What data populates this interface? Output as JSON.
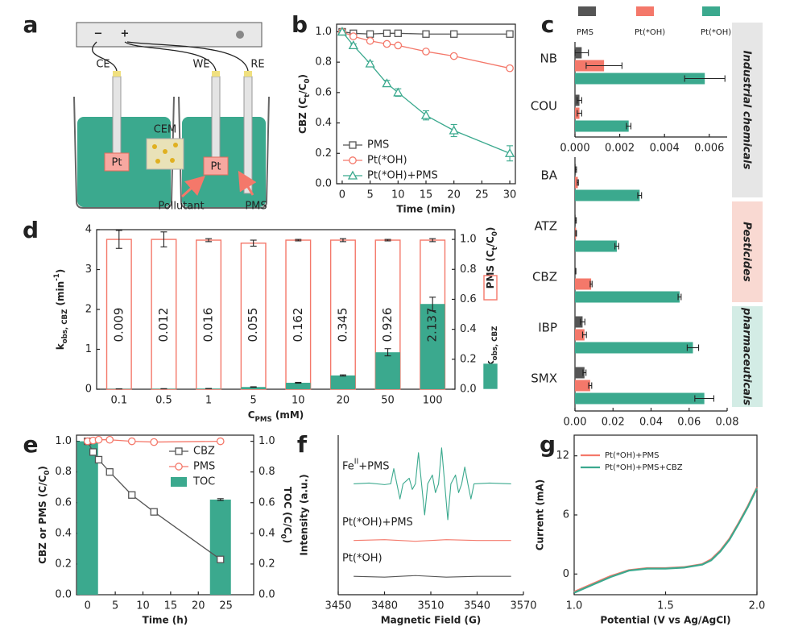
{
  "diagram": {
    "panel_label": "a",
    "power_minus": "−",
    "power_plus": "+",
    "electrodes": {
      "counter": "CE",
      "working": "WE",
      "reference": "RE"
    },
    "membrane": "CEM",
    "electrode_material": [
      "Pt",
      "Pt"
    ],
    "annotations": [
      "Pollutant",
      "PMS"
    ]
  },
  "chart_data": [
    {
      "type": "line",
      "panel_label": "b",
      "x": [
        0,
        2,
        5,
        8,
        10,
        15,
        20,
        30
      ],
      "xlim": [
        -1,
        31
      ],
      "xticks": [
        0,
        5,
        10,
        15,
        20,
        25,
        30
      ],
      "ylim": [
        0,
        1.05
      ],
      "yticks": [
        {
          "value": 0,
          "label": "0.0"
        },
        0.2,
        0.4,
        0.6,
        0.8,
        {
          "value": 1,
          "label": "1.0"
        }
      ],
      "xlabel": "Time (min)",
      "ylabel": [
        {
          "text": "CBZ (C"
        },
        {
          "text": "t",
          "shift": "sub"
        },
        {
          "text": "/C"
        },
        {
          "text": "0",
          "shift": "sub"
        },
        {
          "text": ")"
        }
      ],
      "legend": "lower-left",
      "series": [
        {
          "name": "PMS",
          "color": "#555555",
          "marker": "square",
          "values": [
            1,
            0.99,
            0.985,
            0.99,
            0.99,
            0.985,
            0.985,
            0.985
          ]
        },
        {
          "name": "Pt(*OH)",
          "color": "#f4786a",
          "marker": "circle",
          "values": [
            1,
            0.97,
            0.94,
            0.92,
            0.91,
            0.87,
            0.84,
            0.76
          ]
        },
        {
          "name": "Pt(*OH)+PMS",
          "color": "#3ba98e",
          "marker": "triangle",
          "values": [
            1,
            0.91,
            0.79,
            0.66,
            0.6,
            0.45,
            0.35,
            0.2
          ],
          "errors": [
            0.01,
            0.01,
            0.015,
            0.02,
            0.025,
            0.03,
            0.04,
            0.05
          ]
        }
      ]
    },
    {
      "type": "barh",
      "panel_label": "c",
      "categories": [
        "NB",
        "COU",
        "BA",
        "ATZ",
        "CBZ",
        "IBP",
        "SMX"
      ],
      "category_axis": [
        "x",
        "x",
        "x2",
        "x2",
        "x2",
        "x2",
        "x2"
      ],
      "xlim": [
        0,
        0.0068
      ],
      "xticks": [
        {
          "value": 0,
          "label": "0.000"
        },
        0.002,
        0.004,
        0.006
      ],
      "x2lim": [
        0,
        0.08
      ],
      "x2ticks": [
        {
          "value": 0,
          "label": "0.00"
        },
        0.02,
        0.04,
        0.06,
        0.08
      ],
      "legend": "top",
      "series": [
        {
          "name": "PMS",
          "color": "#555555",
          "values": [
            0.0003,
            0.0002,
            0.0005,
            0.0004,
            0.0003,
            0.004,
            0.005
          ],
          "errors": [
            0.0003,
            0.0001,
            0.0003,
            0.0003,
            0.0002,
            0.0012,
            0.0008
          ]
        },
        {
          "name": "Pt(*OH)",
          "color": "#f4786a",
          "values": [
            0.0013,
            0.0002,
            0.0015,
            0.0006,
            0.0085,
            0.005,
            0.008
          ],
          "errors": [
            0.0008,
            0.0001,
            0.0003,
            0.0002,
            0.0005,
            0.001,
            0.0008
          ]
        },
        {
          "name": "Pt(*OH)+PMS",
          "color": "#3ba98e",
          "values": [
            0.0058,
            0.0024,
            0.034,
            0.022,
            0.055,
            0.062,
            0.068
          ],
          "errors": [
            0.0009,
            0.0001,
            0.001,
            0.001,
            0.0008,
            0.003,
            0.005
          ]
        }
      ],
      "groups": [
        {
          "label": "Industrial chemicals",
          "color": "#e6e6e6"
        },
        {
          "label": "Pesticides",
          "color": "#f9d9d2"
        },
        {
          "label": "pharmaceuticals",
          "color": "#d3ece5"
        }
      ]
    },
    {
      "type": "bar",
      "panel_label": "d",
      "categories": [
        "0.1",
        "0.5",
        "1",
        "5",
        "10",
        "20",
        "50",
        "100"
      ],
      "ylim": [
        0,
        4
      ],
      "yticks": [
        0,
        1,
        2,
        3,
        4
      ],
      "y2lim": [
        0,
        1.065
      ],
      "y2ticks": [
        {
          "value": 0,
          "label": "0.0"
        },
        0.2,
        0.4,
        0.6,
        0.8,
        {
          "value": 1,
          "label": "1.0"
        }
      ],
      "xlabel": [
        {
          "text": "C"
        },
        {
          "text": "PMS",
          "shift": "sub"
        },
        {
          "text": " (mM)"
        }
      ],
      "ylabel": [
        {
          "text": "k"
        },
        {
          "text": "obs, CBZ",
          "shift": "sub"
        },
        {
          "text": " (min"
        },
        {
          "text": "-1",
          "shift": "super"
        },
        {
          "text": ")"
        }
      ],
      "legend": "right",
      "series": [
        {
          "name": [
            {
              "text": "PMS (C"
            },
            {
              "text": "t",
              "shift": "sub"
            },
            {
              "text": "/C"
            },
            {
              "text": "0",
              "shift": "sub"
            },
            {
              "text": ")"
            }
          ],
          "color": "#f4786a",
          "style": "outline",
          "axis": "y2",
          "values": [
            1,
            1,
            0.995,
            0.975,
            0.995,
            0.995,
            0.995,
            0.995
          ],
          "errors": [
            0.06,
            0.05,
            0.01,
            0.02,
            0.005,
            0.01,
            0.005,
            0.01
          ]
        },
        {
          "name": [
            {
              "text": "k"
            },
            {
              "text": "obs, CBZ",
              "shift": "sub"
            }
          ],
          "color": "#3ba98e",
          "style": "fill",
          "values": [
            0.009,
            0.012,
            0.016,
            0.055,
            0.162,
            0.345,
            0.926,
            2.137
          ],
          "errors": [
            0.002,
            0.002,
            0.003,
            0.006,
            0.01,
            0.015,
            0.09,
            0.17
          ],
          "show_values": true
        }
      ]
    },
    {
      "type": "line",
      "panel_label": "e",
      "x": [
        0,
        1,
        2,
        4,
        8,
        12,
        24
      ],
      "xlim": [
        -2,
        30
      ],
      "xticks": [
        0,
        5,
        10,
        15,
        20,
        25
      ],
      "ylim": [
        0,
        1.04
      ],
      "yticks": [
        {
          "value": 0,
          "label": "0.0"
        },
        0.2,
        0.4,
        0.6,
        0.8,
        {
          "value": 1,
          "label": "1.0"
        }
      ],
      "y2lim": [
        0,
        1.04
      ],
      "y2ticks": [
        {
          "value": 0,
          "label": "0.0"
        },
        0.2,
        0.4,
        0.6,
        0.8,
        {
          "value": 1,
          "label": "1.0"
        }
      ],
      "xlabel": "Time (h)",
      "ylabel": [
        {
          "text": "CBZ or PMS (C/C"
        },
        {
          "text": "0",
          "shift": "sub"
        },
        {
          "text": ")"
        }
      ],
      "y2label": [
        {
          "text": "TOC (C/C"
        },
        {
          "text": "0",
          "shift": "sub"
        },
        {
          "text": ")"
        }
      ],
      "legend": "upper-right",
      "series": [
        {
          "name": "CBZ",
          "color": "#555555",
          "marker": "square",
          "values": [
            1,
            0.93,
            0.88,
            0.8,
            0.65,
            0.54,
            0.23
          ],
          "errors": [
            0.01,
            0.01,
            0.015,
            0.01,
            0.015,
            0.015,
            0.01
          ]
        },
        {
          "name": "PMS",
          "color": "#f4786a",
          "marker": "circle",
          "values": [
            1,
            1.005,
            1.01,
            1.01,
            1,
            0.995,
            1
          ]
        },
        {
          "name": "TOC",
          "color": "#3ba98e",
          "kind": "bar",
          "axis": "y2",
          "x": [
            0,
            24
          ],
          "values": [
            1,
            0.62
          ],
          "errors": [
            0.004,
            0.006
          ]
        }
      ]
    },
    {
      "type": "line",
      "panel_label": "f",
      "xlim": [
        3450,
        3570
      ],
      "xticks": [
        3450,
        3480,
        3510,
        3540,
        3570
      ],
      "ylim": [
        0,
        10
      ],
      "xlabel": "Magnetic Field (G)",
      "ylabel": "Intensity (a.u.)",
      "legend": "inline",
      "series": [
        {
          "name": [
            {
              "text": "Fe"
            },
            {
              "text": "II",
              "shift": "super"
            },
            {
              "text": "+PMS"
            }
          ],
          "color": "#3ba98e",
          "x": [
            3460,
            3470,
            3480,
            3484,
            3486,
            3488,
            3490,
            3492,
            3496,
            3498,
            3500,
            3502,
            3504,
            3506,
            3508,
            3511,
            3513,
            3515,
            3517,
            3519,
            3521,
            3523,
            3526,
            3528,
            3530,
            3532,
            3534,
            3536,
            3538,
            3548,
            3562
          ],
          "values": [
            6.95,
            7,
            6.9,
            6.95,
            7.9,
            6.95,
            6,
            6.95,
            7.3,
            6.6,
            6.95,
            8.9,
            6.95,
            5,
            6.95,
            7.5,
            6.4,
            6.95,
            9.2,
            6.95,
            4.7,
            6.95,
            7.5,
            6.4,
            6.95,
            8,
            6.95,
            6,
            6.95,
            7,
            6.95
          ]
        },
        {
          "name": "Pt(*OH)+PMS",
          "color": "#f4786a",
          "x": [
            3460,
            3480,
            3500,
            3520,
            3540,
            3562
          ],
          "values": [
            3.4,
            3.45,
            3.35,
            3.45,
            3.4,
            3.4
          ]
        },
        {
          "name": "Pt(*OH)",
          "color": "#555555",
          "x": [
            3460,
            3480,
            3500,
            3520,
            3540,
            3562
          ],
          "values": [
            1.15,
            1.1,
            1.2,
            1.1,
            1.15,
            1.15
          ]
        }
      ]
    },
    {
      "type": "line",
      "panel_label": "g",
      "x": [
        1,
        1.1,
        1.2,
        1.3,
        1.4,
        1.5,
        1.6,
        1.7,
        1.75,
        1.8,
        1.85,
        1.9,
        1.95,
        2
      ],
      "xlim": [
        1,
        2
      ],
      "xticks": [
        {
          "value": 1,
          "label": "1.0"
        },
        1.5,
        {
          "value": 2,
          "label": "2.0"
        }
      ],
      "ylim": [
        -2.1,
        14.1
      ],
      "yticks": [
        0,
        6,
        12
      ],
      "xlabel": "Potential (V vs Ag/AgCl)",
      "ylabel": "Current (mA)",
      "legend": "upper-left",
      "series": [
        {
          "name": "Pt(*OH)+PMS",
          "color": "#f4786a",
          "values": [
            -1.8,
            -1,
            -0.2,
            0.4,
            0.6,
            0.6,
            0.7,
            1,
            1.5,
            2.4,
            3.6,
            5.2,
            6.9,
            8.8
          ]
        },
        {
          "name": "Pt(*OH)+PMS+CBZ",
          "color": "#3ba98e",
          "values": [
            -1.9,
            -1.1,
            -0.3,
            0.35,
            0.55,
            0.55,
            0.65,
            0.95,
            1.4,
            2.3,
            3.5,
            5.1,
            6.8,
            8.7
          ]
        }
      ]
    }
  ]
}
